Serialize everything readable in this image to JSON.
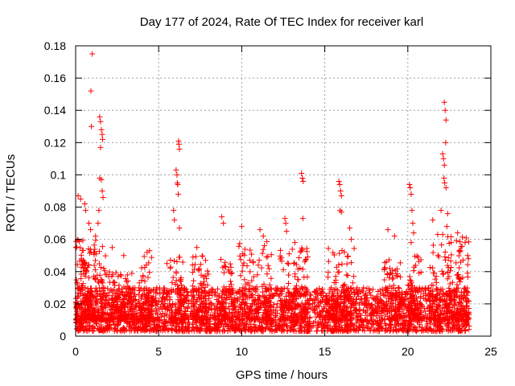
{
  "chart_data": {
    "type": "scatter",
    "title": "Day 177 of 2024, Rate Of TEC Index for receiver karl",
    "xlabel": "GPS time / hours",
    "ylabel": "ROTI / TECUs",
    "xlim": [
      0,
      25
    ],
    "ylim": [
      0,
      0.18
    ],
    "xticks": [
      0,
      5,
      10,
      15,
      20,
      25
    ],
    "xtick_labels": [
      "0",
      "5",
      "10",
      "15",
      "20",
      "25"
    ],
    "yticks": [
      0,
      0.02,
      0.04,
      0.06,
      0.08,
      0.1,
      0.12,
      0.14,
      0.16,
      0.18
    ],
    "ytick_labels": [
      "0",
      "0.02",
      "0.04",
      "0.06",
      "0.08",
      "0.1",
      "0.12",
      "0.14",
      "0.16",
      "0.18"
    ],
    "grid": true,
    "marker": "+",
    "color": "#ff0000",
    "data_extent_hours": [
      0,
      23.7
    ],
    "bulk_band": [
      0.003,
      0.03
    ],
    "outliers": [
      {
        "x": 0.15,
        "y": 0.087
      },
      {
        "x": 0.3,
        "y": 0.085
      },
      {
        "x": 0.55,
        "y": 0.082
      },
      {
        "x": 0.6,
        "y": 0.078
      },
      {
        "x": 0.8,
        "y": 0.07
      },
      {
        "x": 0.9,
        "y": 0.066
      },
      {
        "x": 1.0,
        "y": 0.175
      },
      {
        "x": 0.92,
        "y": 0.152
      },
      {
        "x": 0.95,
        "y": 0.13
      },
      {
        "x": 1.45,
        "y": 0.136
      },
      {
        "x": 1.5,
        "y": 0.133
      },
      {
        "x": 1.55,
        "y": 0.128
      },
      {
        "x": 1.6,
        "y": 0.125
      },
      {
        "x": 1.62,
        "y": 0.122
      },
      {
        "x": 1.5,
        "y": 0.117
      },
      {
        "x": 1.45,
        "y": 0.098
      },
      {
        "x": 1.55,
        "y": 0.097
      },
      {
        "x": 1.6,
        "y": 0.09
      },
      {
        "x": 1.65,
        "y": 0.086
      },
      {
        "x": 1.4,
        "y": 0.078
      },
      {
        "x": 1.35,
        "y": 0.07
      },
      {
        "x": 1.2,
        "y": 0.062
      },
      {
        "x": 2.2,
        "y": 0.055
      },
      {
        "x": 2.9,
        "y": 0.05
      },
      {
        "x": 4.3,
        "y": 0.052
      },
      {
        "x": 4.45,
        "y": 0.053
      },
      {
        "x": 5.5,
        "y": 0.045
      },
      {
        "x": 5.9,
        "y": 0.078
      },
      {
        "x": 5.95,
        "y": 0.072
      },
      {
        "x": 6.05,
        "y": 0.103
      },
      {
        "x": 6.1,
        "y": 0.1
      },
      {
        "x": 6.12,
        "y": 0.095
      },
      {
        "x": 6.15,
        "y": 0.094
      },
      {
        "x": 6.2,
        "y": 0.121
      },
      {
        "x": 6.22,
        "y": 0.119
      },
      {
        "x": 6.25,
        "y": 0.116
      },
      {
        "x": 6.18,
        "y": 0.088
      },
      {
        "x": 6.25,
        "y": 0.067
      },
      {
        "x": 7.3,
        "y": 0.055
      },
      {
        "x": 8.8,
        "y": 0.074
      },
      {
        "x": 8.9,
        "y": 0.07
      },
      {
        "x": 10.0,
        "y": 0.068
      },
      {
        "x": 11.1,
        "y": 0.066
      },
      {
        "x": 11.3,
        "y": 0.062
      },
      {
        "x": 12.6,
        "y": 0.073
      },
      {
        "x": 12.65,
        "y": 0.07
      },
      {
        "x": 12.7,
        "y": 0.065
      },
      {
        "x": 13.2,
        "y": 0.058
      },
      {
        "x": 13.6,
        "y": 0.101
      },
      {
        "x": 13.65,
        "y": 0.098
      },
      {
        "x": 13.7,
        "y": 0.096
      },
      {
        "x": 13.68,
        "y": 0.073
      },
      {
        "x": 15.85,
        "y": 0.096
      },
      {
        "x": 15.9,
        "y": 0.094
      },
      {
        "x": 15.95,
        "y": 0.09
      },
      {
        "x": 16.0,
        "y": 0.087
      },
      {
        "x": 15.92,
        "y": 0.078
      },
      {
        "x": 16.0,
        "y": 0.077
      },
      {
        "x": 16.5,
        "y": 0.067
      },
      {
        "x": 16.6,
        "y": 0.06
      },
      {
        "x": 18.8,
        "y": 0.066
      },
      {
        "x": 19.2,
        "y": 0.062
      },
      {
        "x": 20.1,
        "y": 0.094
      },
      {
        "x": 20.15,
        "y": 0.092
      },
      {
        "x": 20.2,
        "y": 0.088
      },
      {
        "x": 20.25,
        "y": 0.078
      },
      {
        "x": 20.3,
        "y": 0.07
      },
      {
        "x": 20.35,
        "y": 0.064
      },
      {
        "x": 20.2,
        "y": 0.058
      },
      {
        "x": 21.5,
        "y": 0.072
      },
      {
        "x": 21.8,
        "y": 0.063
      },
      {
        "x": 22.2,
        "y": 0.145
      },
      {
        "x": 22.25,
        "y": 0.14
      },
      {
        "x": 22.3,
        "y": 0.134
      },
      {
        "x": 22.28,
        "y": 0.12
      },
      {
        "x": 22.1,
        "y": 0.113
      },
      {
        "x": 22.15,
        "y": 0.11
      },
      {
        "x": 22.2,
        "y": 0.106
      },
      {
        "x": 22.18,
        "y": 0.098
      },
      {
        "x": 22.22,
        "y": 0.095
      },
      {
        "x": 22.3,
        "y": 0.092
      },
      {
        "x": 22.0,
        "y": 0.078
      },
      {
        "x": 22.4,
        "y": 0.076
      },
      {
        "x": 22.35,
        "y": 0.068
      },
      {
        "x": 22.1,
        "y": 0.063
      },
      {
        "x": 23.0,
        "y": 0.064
      },
      {
        "x": 23.6,
        "y": 0.05
      },
      {
        "x": 23.65,
        "y": 0.048
      }
    ],
    "clusters": [
      {
        "x0": 0.0,
        "x1": 1.8,
        "ymax": 0.06,
        "n": 260
      },
      {
        "x0": 1.8,
        "x1": 3.5,
        "ymax": 0.04,
        "n": 140
      },
      {
        "x0": 3.8,
        "x1": 4.7,
        "ymax": 0.05,
        "n": 90
      },
      {
        "x0": 5.7,
        "x1": 6.6,
        "ymax": 0.055,
        "n": 90
      },
      {
        "x0": 7.0,
        "x1": 8.0,
        "ymax": 0.05,
        "n": 80
      },
      {
        "x0": 8.5,
        "x1": 9.5,
        "ymax": 0.048,
        "n": 80
      },
      {
        "x0": 9.8,
        "x1": 11.8,
        "ymax": 0.06,
        "n": 150
      },
      {
        "x0": 12.3,
        "x1": 14.0,
        "ymax": 0.055,
        "n": 130
      },
      {
        "x0": 15.0,
        "x1": 16.8,
        "ymax": 0.055,
        "n": 130
      },
      {
        "x0": 18.5,
        "x1": 19.6,
        "ymax": 0.05,
        "n": 90
      },
      {
        "x0": 20.0,
        "x1": 20.8,
        "ymax": 0.05,
        "n": 70
      },
      {
        "x0": 21.3,
        "x1": 23.7,
        "ymax": 0.062,
        "n": 200
      }
    ]
  }
}
